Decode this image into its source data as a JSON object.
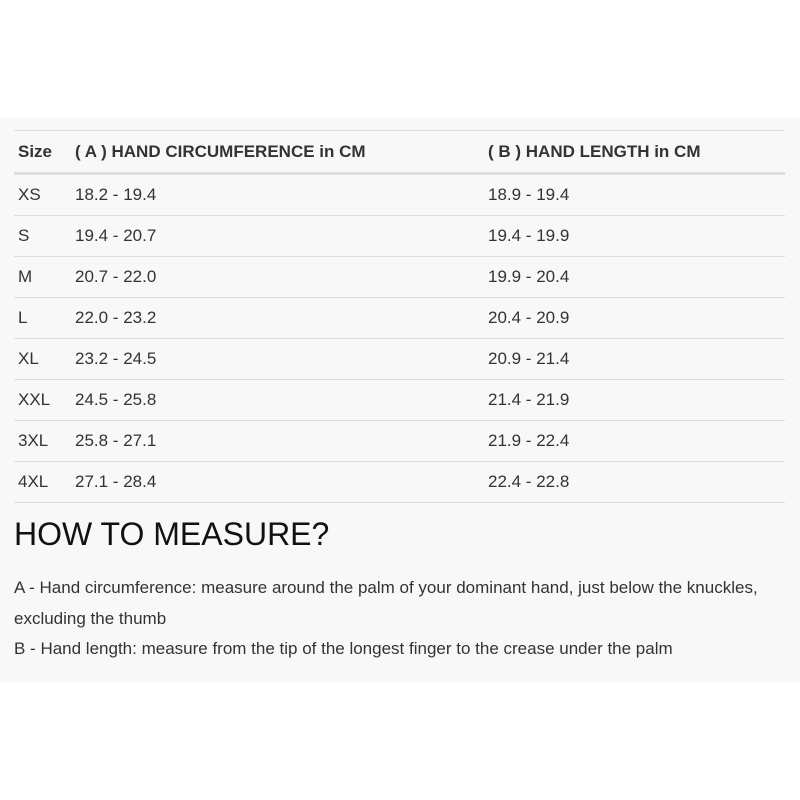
{
  "table": {
    "headers": [
      "Size",
      "( A ) HAND CIRCUMFERENCE in CM",
      "( B ) HAND LENGTH in CM"
    ],
    "rows": [
      [
        "XS",
        "18.2 - 19.4",
        "18.9 - 19.4"
      ],
      [
        "S",
        "19.4 - 20.7",
        "19.4 - 19.9"
      ],
      [
        "M",
        "20.7 - 22.0",
        "19.9 - 20.4"
      ],
      [
        "L",
        "22.0 - 23.2",
        "20.4 - 20.9"
      ],
      [
        "XL",
        "23.2 - 24.5",
        "20.9 - 21.4"
      ],
      [
        "XXL",
        "24.5 - 25.8",
        "21.4 - 21.9"
      ],
      [
        "3XL",
        "25.8 - 27.1",
        "21.9 - 22.4"
      ],
      [
        "4XL",
        "27.1 - 28.4",
        "22.4 - 22.8"
      ]
    ]
  },
  "measure": {
    "title": "HOW TO MEASURE?",
    "lines": [
      "A - Hand circumference: measure around the palm of your dominant hand, just below the knuckles, excluding the thumb",
      "B - Hand length: measure from the tip of the longest finger to the crease under the palm"
    ]
  }
}
